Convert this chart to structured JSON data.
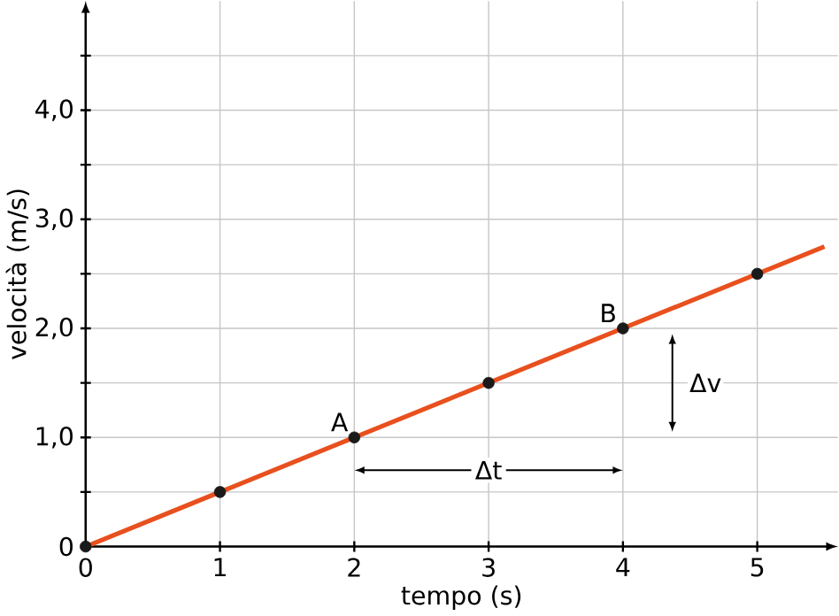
{
  "chart_data": {
    "type": "line",
    "xlabel": "tempo (s)",
    "ylabel": "velocità (m/s)",
    "xlim": [
      0,
      5.6
    ],
    "ylim": [
      0,
      5
    ],
    "xticks": [
      0,
      1,
      2,
      3,
      4,
      5
    ],
    "yticks": [
      0,
      {
        "value": 0.5,
        "label": null
      },
      {
        "value": 1,
        "label": "1,0"
      },
      {
        "value": 1.5,
        "label": null
      },
      {
        "value": 2,
        "label": "2,0"
      },
      {
        "value": 2.5,
        "label": null
      },
      {
        "value": 3,
        "label": "3,0"
      },
      {
        "value": 3.5,
        "label": null
      },
      {
        "value": 4,
        "label": "4,0"
      },
      {
        "value": 4.5,
        "label": null
      }
    ],
    "grid": true,
    "series": [
      {
        "color": "#e8501e",
        "x": [
          0,
          5.5
        ],
        "values": [
          0,
          2.75
        ],
        "marker": "none"
      },
      {
        "type": "scatter",
        "color": "#1a1a1a",
        "x": [
          0,
          1,
          2,
          3,
          4,
          5
        ],
        "values": [
          0,
          0.5,
          1,
          1.5,
          2,
          2.5
        ],
        "marker": "circle"
      }
    ],
    "annotations": [
      {
        "text": "A",
        "x": 2,
        "y": 1
      },
      {
        "text": "B",
        "x": 4,
        "y": 2
      },
      {
        "text": "Δt",
        "x": 3,
        "y": 0.7
      },
      "Δv"
    ]
  }
}
